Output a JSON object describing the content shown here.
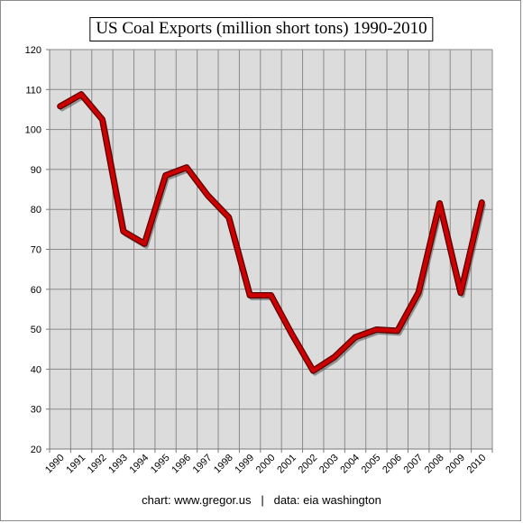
{
  "chart_data": {
    "type": "line",
    "title": "US Coal Exports (million short tons) 1990-2010",
    "xlabel": "",
    "ylabel": "",
    "x": [
      "1990",
      "1991",
      "1992",
      "1993",
      "1994",
      "1995",
      "1996",
      "1997",
      "1998",
      "1999",
      "2000",
      "2001",
      "2002",
      "2003",
      "2004",
      "2005",
      "2006",
      "2007",
      "2008",
      "2009",
      "2010"
    ],
    "series": [
      {
        "values": [
          105.8,
          108.8,
          102.5,
          74.5,
          71.4,
          88.5,
          90.5,
          83.5,
          78.0,
          58.5,
          58.5,
          48.7,
          39.6,
          43.0,
          48.0,
          49.9,
          49.6,
          59.2,
          81.5,
          59.1,
          81.7
        ]
      }
    ],
    "yticks": [
      "20",
      "30",
      "40",
      "50",
      "60",
      "70",
      "80",
      "90",
      "100",
      "110",
      "120"
    ],
    "ylim": [
      20,
      120
    ],
    "grid": true,
    "line_color": "#cc0000",
    "plot_background": "#dcdcdc"
  },
  "footer": {
    "credit": "chart: www.gregor.us",
    "separator": "|",
    "source": "data: eia washington"
  }
}
